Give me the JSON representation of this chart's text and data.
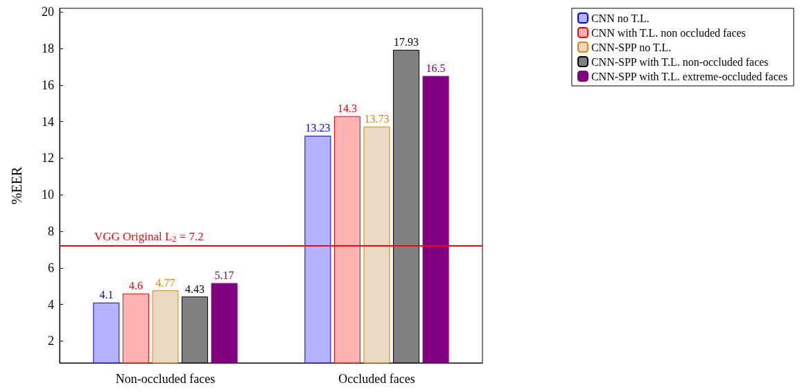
{
  "chart_data": {
    "type": "bar",
    "ylabel": "%EER",
    "categories": [
      "Non-occluded faces",
      "Occluded faces"
    ],
    "series": [
      {
        "name": "CNN no T.L.",
        "color": "#b3b3ff",
        "values": [
          4.1,
          13.23
        ]
      },
      {
        "name": "CNN with T.L. non occluded faces",
        "color": "#ffb3b3",
        "values": [
          4.6,
          14.3
        ]
      },
      {
        "name": "CNN-SPP no T.L.",
        "color": "#e8d8c4",
        "values": [
          4.77,
          13.73
        ]
      },
      {
        "name": "CNN-SPP with T.L. non-occluded faces",
        "color": "#808080",
        "values": [
          4.43,
          17.93
        ]
      },
      {
        "name": "CNN-SPP with T.L. extreme-occluded faces",
        "color": "#800080",
        "values": [
          5.17,
          16.5
        ]
      }
    ],
    "ylim": [
      0.8,
      20.2
    ],
    "yticks": [
      2,
      4,
      6,
      8,
      10,
      12,
      14,
      16,
      18,
      20
    ],
    "ref_lines": [
      {
        "axis": "y",
        "value": 7.2,
        "label": "VGG Original L$_{2}$ = 7.2",
        "color": "#ff0000"
      }
    ],
    "data_labels": true,
    "legend": "top right",
    "grid": false
  }
}
